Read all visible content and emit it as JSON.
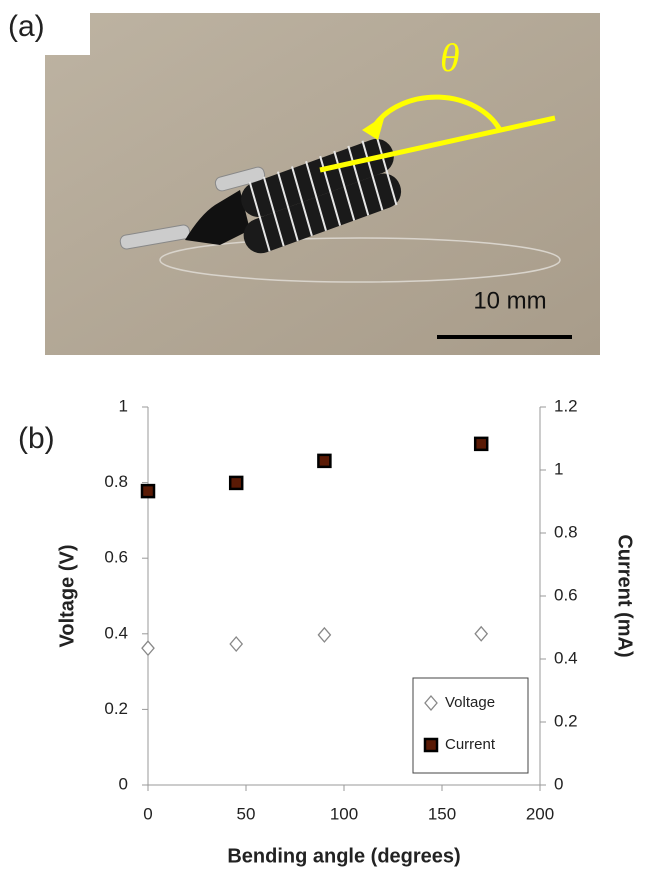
{
  "panel_a": {
    "label": "(a)",
    "angle": "θ",
    "scale_bar": "10 mm"
  },
  "chart_data": {
    "type": "scatter",
    "panel_label": "(b)",
    "x_label": "Bending angle (degrees)",
    "y_label": "Voltage (V)",
    "y2_label": "Current (mA)",
    "x": [
      0,
      45,
      90,
      170
    ],
    "series": [
      {
        "name": "Voltage",
        "color": "#888888",
        "marker": "open-diamond",
        "values": [
          0.362,
          0.373,
          0.397,
          0.4
        ]
      },
      {
        "name": "Current",
        "color": "#000000",
        "marker": "square",
        "axis": "y2",
        "values": [
          0.933,
          0.959,
          1.029,
          1.083
        ]
      }
    ],
    "xlim": [
      0,
      200
    ],
    "xticks": [
      0,
      50,
      100,
      150,
      200
    ],
    "ylim": [
      0,
      1
    ],
    "yticks": [
      0,
      0.2,
      0.4,
      0.6,
      0.8,
      1
    ],
    "y2lim": [
      0,
      1.2
    ],
    "y2ticks": [
      0,
      0.2,
      0.4,
      0.6,
      0.8,
      1,
      1.2
    ],
    "grid": false,
    "legend": "lower right"
  }
}
